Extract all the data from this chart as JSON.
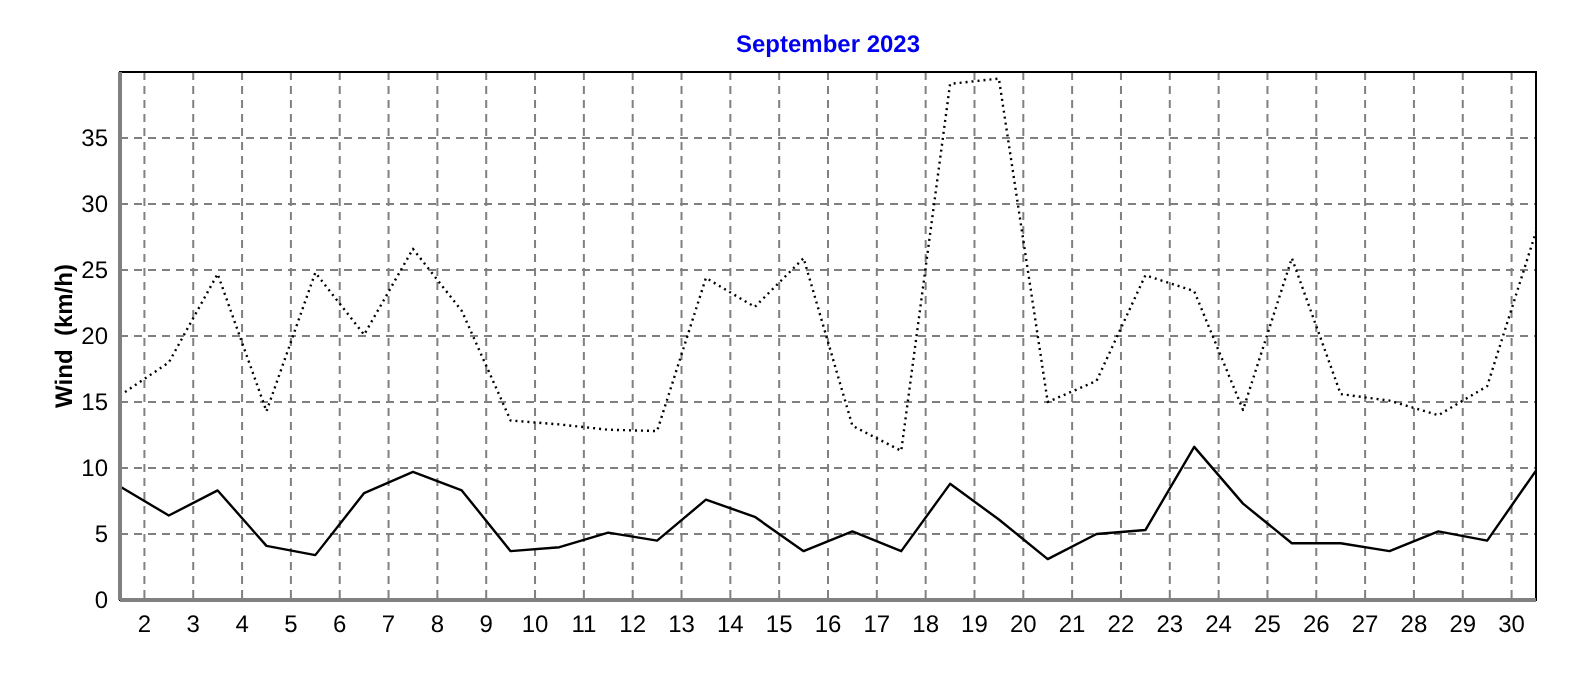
{
  "chart_data": {
    "type": "line",
    "title": "September 2023",
    "ylabel": "Wind  (km/h)",
    "x": [
      1.5,
      2.5,
      3.5,
      4.5,
      5.5,
      6.5,
      7.5,
      8.5,
      9.5,
      10.5,
      11.5,
      12.5,
      13.5,
      14.5,
      15.5,
      16.5,
      17.5,
      18.5,
      19.5,
      20.5,
      21.5,
      22.5,
      23.5,
      24.5,
      25.5,
      26.5,
      27.5,
      28.5,
      29.5,
      30.5
    ],
    "xlim": [
      1.5,
      30.5
    ],
    "xticks": [
      2,
      3,
      4,
      5,
      6,
      7,
      8,
      9,
      10,
      11,
      12,
      13,
      14,
      15,
      16,
      17,
      18,
      19,
      20,
      21,
      22,
      23,
      24,
      25,
      26,
      27,
      28,
      29,
      30
    ],
    "ylim": [
      0,
      40
    ],
    "yticks": [
      0,
      5,
      10,
      15,
      20,
      25,
      30,
      35
    ],
    "grid": true,
    "marker": "none",
    "series": [
      {
        "color": "#000000",
        "line_style": "dotted",
        "values": [
          15.5,
          18.0,
          24.7,
          14.3,
          24.8,
          20.1,
          26.6,
          21.9,
          13.6,
          13.3,
          12.9,
          12.8,
          24.4,
          22.2,
          25.9,
          13.2,
          11.3,
          39.1,
          39.5,
          15.0,
          16.6,
          24.6,
          23.4,
          14.4,
          25.9,
          15.6,
          15.1,
          14.0,
          16.2,
          27.9
        ]
      },
      {
        "color": "#000000",
        "line_style": "solid",
        "values": [
          8.6,
          6.4,
          8.3,
          4.1,
          3.4,
          8.1,
          9.7,
          8.3,
          3.7,
          4.0,
          5.1,
          4.5,
          7.6,
          6.3,
          3.7,
          5.2,
          3.7,
          8.8,
          6.1,
          3.1,
          5.0,
          5.3,
          11.6,
          7.3,
          4.3,
          4.3,
          3.7,
          5.2,
          4.5,
          9.8
        ]
      }
    ]
  }
}
